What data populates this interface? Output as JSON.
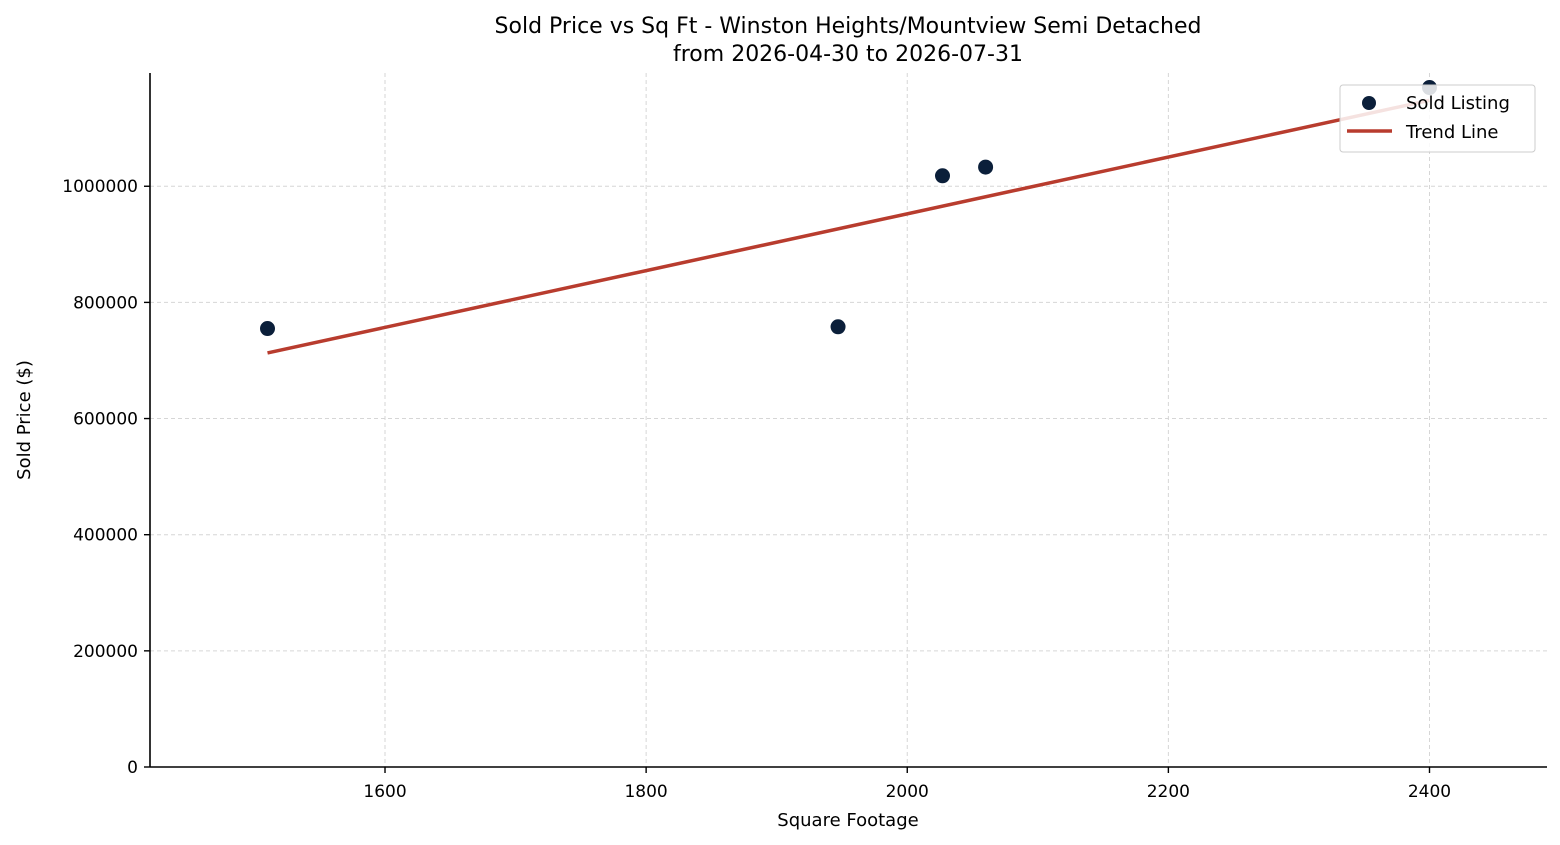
{
  "chart_data": {
    "type": "scatter",
    "title": "Sold Price vs Sq Ft - Winston Heights/Mountview Semi Detached",
    "subtitle": "from 2026-04-30 to 2026-07-31",
    "xlabel": "Square Footage",
    "ylabel": "Sold Price ($)",
    "xlim": [
      1420,
      2490
    ],
    "ylim": [
      0,
      1195000
    ],
    "x_ticks": [
      1600,
      1800,
      2000,
      2200,
      2400
    ],
    "y_ticks": [
      0,
      200000,
      400000,
      600000,
      800000,
      1000000
    ],
    "grid": true,
    "legend_position": "top-right",
    "series": [
      {
        "name": "Sold Listing",
        "kind": "scatter",
        "color": "#0b1f3a",
        "x": [
          1510,
          1947,
          2027,
          2060,
          2400
        ],
        "y": [
          755000,
          758000,
          1018000,
          1033000,
          1170000
        ]
      },
      {
        "name": "Trend Line",
        "kind": "line",
        "color": "#b83c2e",
        "x": [
          1510,
          2400
        ],
        "y": [
          713000,
          1148000
        ]
      }
    ]
  }
}
